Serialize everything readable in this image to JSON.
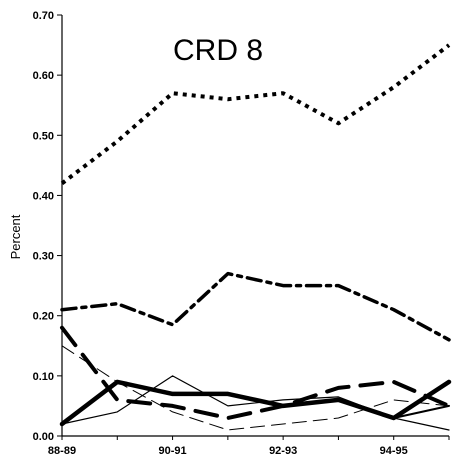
{
  "chart_data": {
    "type": "line",
    "title": "CRD 8",
    "xlabel": "",
    "ylabel": "Percent",
    "ylim": [
      0,
      0.7
    ],
    "yticks": [
      "0.00",
      "0.10",
      "0.20",
      "0.30",
      "0.40",
      "0.50",
      "0.60",
      "0.70"
    ],
    "x_tick_labels": [
      "88-89",
      "90-91",
      "92-93",
      "94-95"
    ],
    "x": [
      0,
      1,
      2,
      3,
      4,
      5,
      6,
      7
    ],
    "grid": false,
    "legend": "none",
    "series": [
      {
        "style": "dotted",
        "color": "#000000",
        "width": 4,
        "values": [
          0.42,
          0.49,
          0.57,
          0.56,
          0.57,
          0.52,
          0.58,
          0.65
        ]
      },
      {
        "style": "dash-dot",
        "color": "#000000",
        "width": 3.5,
        "values": [
          0.21,
          0.22,
          0.185,
          0.27,
          0.25,
          0.25,
          0.21,
          0.16
        ]
      },
      {
        "style": "long-dash",
        "color": "#000000",
        "width": 4,
        "values": [
          0.18,
          0.06,
          0.05,
          0.03,
          0.05,
          0.08,
          0.09,
          0.05
        ]
      },
      {
        "style": "thin-dash",
        "color": "#000000",
        "width": 1,
        "values": [
          0.15,
          0.09,
          0.04,
          0.01,
          0.02,
          0.03,
          0.06,
          0.05
        ]
      },
      {
        "style": "thin-solid",
        "color": "#000000",
        "width": 1.2,
        "values": [
          0.02,
          0.04,
          0.1,
          0.05,
          0.06,
          0.065,
          0.03,
          0.01
        ]
      },
      {
        "style": "medium-solid",
        "color": "#000000",
        "width": 2,
        "values": [
          0.02,
          0.09,
          0.07,
          0.07,
          0.05,
          0.06,
          0.03,
          0.05
        ]
      },
      {
        "style": "thick-solid",
        "color": "#000000",
        "width": 4.5,
        "values": [
          0.02,
          0.09,
          0.07,
          0.07,
          0.05,
          0.06,
          0.03,
          0.09
        ]
      }
    ]
  }
}
